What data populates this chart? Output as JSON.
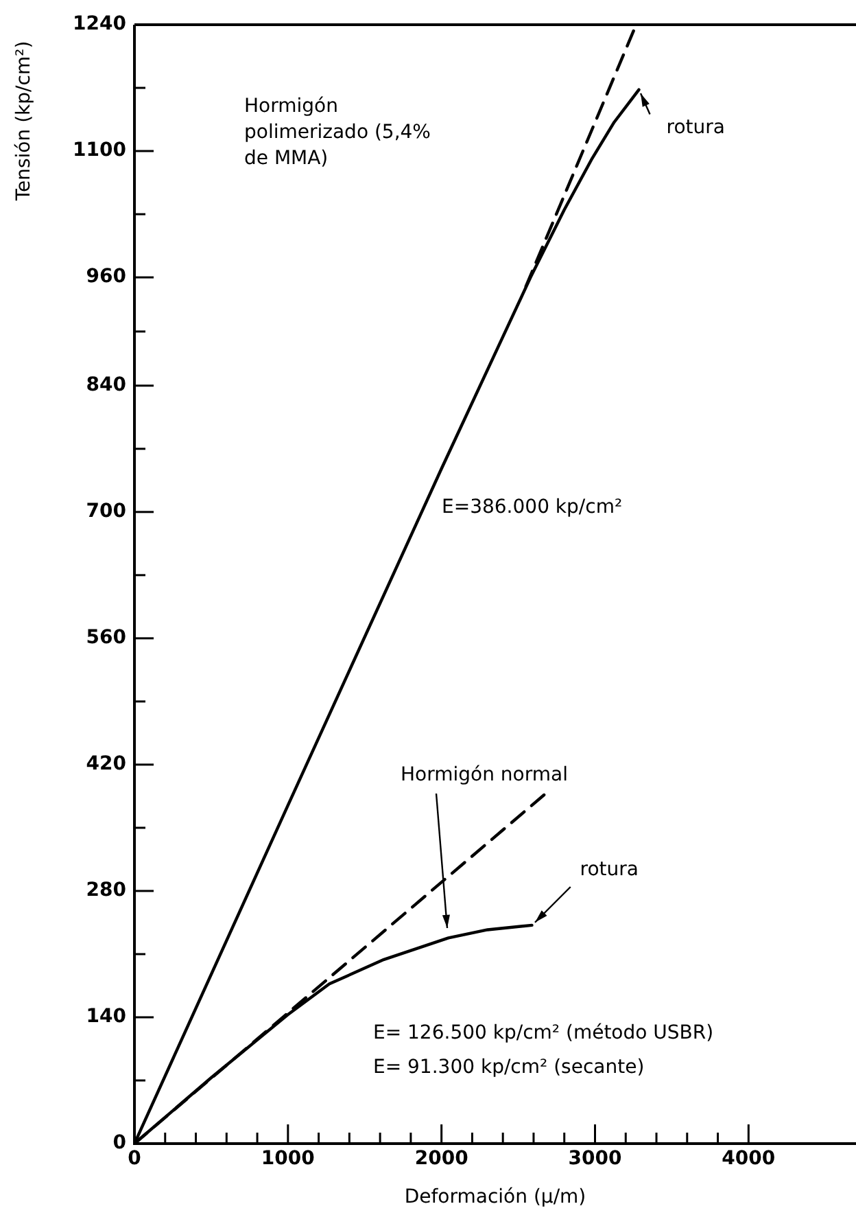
{
  "chart_data": {
    "type": "line",
    "xlabel": "Deformación (μ/m)",
    "ylabel": "Tensión (kp/cm²)",
    "marker": "none",
    "xlim": [
      0,
      4700
    ],
    "ylim": [
      0,
      1240
    ],
    "xticks": [
      0,
      {
        "value": 200,
        "label": null
      },
      {
        "value": 400,
        "label": null
      },
      {
        "value": 600,
        "label": null
      },
      {
        "value": 800,
        "label": null
      },
      1000,
      {
        "value": 1200,
        "label": null
      },
      {
        "value": 1400,
        "label": null
      },
      {
        "value": 1600,
        "label": null
      },
      {
        "value": 1800,
        "label": null
      },
      2000,
      {
        "value": 2200,
        "label": null
      },
      {
        "value": 2400,
        "label": null
      },
      {
        "value": 2600,
        "label": null
      },
      {
        "value": 2800,
        "label": null
      },
      3000,
      {
        "value": 3200,
        "label": null
      },
      {
        "value": 3400,
        "label": null
      },
      {
        "value": 3600,
        "label": null
      },
      {
        "value": 3800,
        "label": null
      },
      4000
    ],
    "yticks": [
      0,
      {
        "value": 70,
        "label": null
      },
      140,
      {
        "value": 210,
        "label": null
      },
      280,
      {
        "value": 350,
        "label": null
      },
      420,
      {
        "value": 490,
        "label": null
      },
      560,
      {
        "value": 630,
        "label": null
      },
      700,
      {
        "value": 770,
        "label": null
      },
      840,
      {
        "value": 900,
        "label": null
      },
      960,
      {
        "value": 1030,
        "label": null
      },
      1100,
      {
        "value": 1170,
        "label": null
      },
      1240
    ],
    "series": [
      {
        "color": "#000000",
        "line_style": "solid",
        "x": [
          0,
          1000,
          2000,
          2580,
          2800,
          2982,
          3125,
          3286
        ],
        "values": [
          0,
          375,
          748,
          960,
          1035,
          1092,
          1132,
          1168
        ]
      },
      {
        "color": "#000000",
        "line_style": "dashed",
        "x": [
          2550,
          3268
        ],
        "values": [
          950,
          1240
        ]
      },
      {
        "color": "#000000",
        "line_style": "solid",
        "x": [
          0,
          500,
          1000,
          1270,
          1625,
          2045,
          2300,
          2589
        ],
        "values": [
          0,
          73,
          143,
          177,
          204,
          228,
          237,
          242
        ]
      },
      {
        "color": "#000000",
        "line_style": "dashed",
        "x": [
          0,
          2679
        ],
        "values": [
          0,
          388
        ]
      }
    ],
    "annotations": [
      "Hormigón polimerizado (5,4% de MMA)",
      "E=386.000 kp/cm²",
      "E= 126.500 kp/cm² (método USBR)",
      "E= 91.300 kp/cm² (secante)",
      {
        "text": "rotura",
        "x": 3286,
        "y": 1168
      },
      {
        "text": "rotura",
        "x": 2589,
        "y": 242
      },
      "Hormigón normal"
    ]
  }
}
